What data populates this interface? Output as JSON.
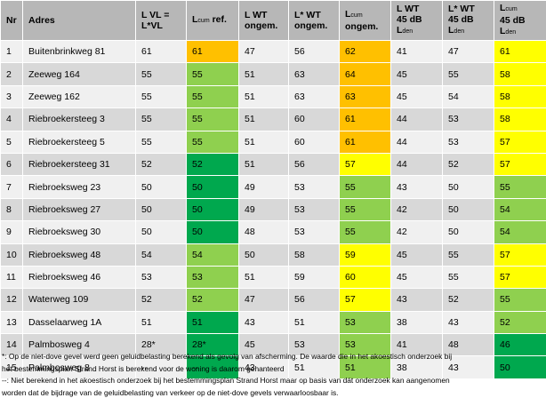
{
  "colors": {
    "header_bg": "#b7b7b7",
    "row_light": "#f0f0f0",
    "row_dark": "#d8d8d8",
    "dark_green": "#00a84e",
    "light_green": "#8fd04f",
    "yellow": "#ffff00",
    "orange": "#ffc000"
  },
  "header": {
    "nr": "Nr",
    "adres": "Adres",
    "lvl_line1": "L VL =",
    "lvl_line2": "L*VL",
    "lcum_ref_main": "L",
    "lcum_ref_sub": "cum",
    "lcum_ref_rest": " ref.",
    "lwt_line1": "L WT",
    "lwt_line2": "ongem.",
    "lswt_line1": "L* WT",
    "lswt_line2": "ongem.",
    "lcum_ong_main": "L",
    "lcum_ong_sub": "cum",
    "lcum_ong_line2": "ongem.",
    "lwt45_line1": "L WT",
    "lwt45_line2": "45 dB",
    "lwt45_line3_main": "L",
    "lwt45_line3_sub": "den",
    "lswt45_line1": "L* WT",
    "lswt45_line2": "45 dB",
    "lswt45_line3_main": "L",
    "lswt45_line3_sub": "den",
    "lcum45_line1_main": "L",
    "lcum45_line1_sub": "cum",
    "lcum45_line2": "45 dB",
    "lcum45_line3_main": "L",
    "lcum45_line3_sub": "den"
  },
  "rows": [
    {
      "nr": "1",
      "adres": "Buitenbrinkweg 81",
      "lvl": "61",
      "lcum_ref": "61",
      "lwt": "47",
      "lswt": "56",
      "lcum_ong": "62",
      "lwt45": "41",
      "lswt45": "47",
      "lcum45": "61",
      "c_ref": "orange",
      "c_ong": "orange",
      "c_45": "yellow"
    },
    {
      "nr": "2",
      "adres": "Zeeweg 164",
      "lvl": "55",
      "lcum_ref": "55",
      "lwt": "51",
      "lswt": "63",
      "lcum_ong": "64",
      "lwt45": "45",
      "lswt45": "55",
      "lcum45": "58",
      "c_ref": "light_green",
      "c_ong": "orange",
      "c_45": "yellow"
    },
    {
      "nr": "3",
      "adres": "Zeeweg 162",
      "lvl": "55",
      "lcum_ref": "55",
      "lwt": "51",
      "lswt": "63",
      "lcum_ong": "63",
      "lwt45": "45",
      "lswt45": "54",
      "lcum45": "58",
      "c_ref": "light_green",
      "c_ong": "orange",
      "c_45": "yellow"
    },
    {
      "nr": "4",
      "adres": "Riebroekersteeg 3",
      "lvl": "55",
      "lcum_ref": "55",
      "lwt": "51",
      "lswt": "60",
      "lcum_ong": "61",
      "lwt45": "44",
      "lswt45": "53",
      "lcum45": "58",
      "c_ref": "light_green",
      "c_ong": "orange",
      "c_45": "yellow"
    },
    {
      "nr": "5",
      "adres": "Riebroekersteeg 5",
      "lvl": "55",
      "lcum_ref": "55",
      "lwt": "51",
      "lswt": "60",
      "lcum_ong": "61",
      "lwt45": "44",
      "lswt45": "53",
      "lcum45": "57",
      "c_ref": "light_green",
      "c_ong": "orange",
      "c_45": "yellow"
    },
    {
      "nr": "6",
      "adres": "Riebroekersteeg 31",
      "lvl": "52",
      "lcum_ref": "52",
      "lwt": "51",
      "lswt": "56",
      "lcum_ong": "57",
      "lwt45": "44",
      "lswt45": "52",
      "lcum45": "57",
      "c_ref": "dark_green",
      "c_ong": "yellow",
      "c_45": "yellow"
    },
    {
      "nr": "7",
      "adres": "Riebroeksweg 23",
      "lvl": "50",
      "lcum_ref": "50",
      "lwt": "49",
      "lswt": "53",
      "lcum_ong": "55",
      "lwt45": "43",
      "lswt45": "50",
      "lcum45": "55",
      "c_ref": "dark_green",
      "c_ong": "light_green",
      "c_45": "light_green"
    },
    {
      "nr": "8",
      "adres": "Riebroeksweg 27",
      "lvl": "50",
      "lcum_ref": "50",
      "lwt": "49",
      "lswt": "53",
      "lcum_ong": "55",
      "lwt45": "42",
      "lswt45": "50",
      "lcum45": "54",
      "c_ref": "dark_green",
      "c_ong": "light_green",
      "c_45": "light_green"
    },
    {
      "nr": "9",
      "adres": "Riebroeksweg 30",
      "lvl": "50",
      "lcum_ref": "50",
      "lwt": "48",
      "lswt": "53",
      "lcum_ong": "55",
      "lwt45": "42",
      "lswt45": "50",
      "lcum45": "54",
      "c_ref": "dark_green",
      "c_ong": "light_green",
      "c_45": "light_green"
    },
    {
      "nr": "10",
      "adres": "Riebroeksweg 48",
      "lvl": "54",
      "lcum_ref": "54",
      "lwt": "50",
      "lswt": "58",
      "lcum_ong": "59",
      "lwt45": "45",
      "lswt45": "55",
      "lcum45": "57",
      "c_ref": "light_green",
      "c_ong": "yellow",
      "c_45": "yellow"
    },
    {
      "nr": "11",
      "adres": "Riebroeksweg 46",
      "lvl": "53",
      "lcum_ref": "53",
      "lwt": "51",
      "lswt": "59",
      "lcum_ong": "60",
      "lwt45": "45",
      "lswt45": "55",
      "lcum45": "57",
      "c_ref": "light_green",
      "c_ong": "yellow",
      "c_45": "yellow"
    },
    {
      "nr": "12",
      "adres": "Waterweg 109",
      "lvl": "52",
      "lcum_ref": "52",
      "lwt": "47",
      "lswt": "56",
      "lcum_ong": "57",
      "lwt45": "43",
      "lswt45": "52",
      "lcum45": "55",
      "c_ref": "light_green",
      "c_ong": "yellow",
      "c_45": "light_green"
    },
    {
      "nr": "13",
      "adres": "Dasselaarweg 1A",
      "lvl": "51",
      "lcum_ref": "51",
      "lwt": "43",
      "lswt": "51",
      "lcum_ong": "53",
      "lwt45": "38",
      "lswt45": "43",
      "lcum45": "52",
      "c_ref": "dark_green",
      "c_ong": "light_green",
      "c_45": "light_green"
    },
    {
      "nr": "14",
      "adres": "Palmbosweg 4",
      "lvl": "28*",
      "lcum_ref": "28*",
      "lwt": "45",
      "lswt": "53",
      "lcum_ong": "53",
      "lwt45": "41",
      "lswt45": "48",
      "lcum45": "46",
      "c_ref": "dark_green",
      "c_ong": "light_green",
      "c_45": "dark_green"
    },
    {
      "nr": "15",
      "adres": "Palmbosweg 8",
      "lvl": "--",
      "lcum_ref": "--",
      "lwt": "43",
      "lswt": "51",
      "lcum_ong": "51",
      "lwt45": "38",
      "lswt45": "43",
      "lcum45": "50",
      "c_ref": "dark_green",
      "c_ong": "light_green",
      "c_45": "dark_green"
    }
  ],
  "notes": {
    "line1": "*: Op de niet-dove gevel werd geen geluidbelasting berekend als gevolg van afscherming. De waarde die in het akoestisch onderzoek bij",
    "line2": "het bestemmingsplan Strand Horst is berekend voor de woning is daarom gehanteerd",
    "line3": "--: Niet berekend in het akoestisch onderzoek bij het bestemmingsplan Strand Horst maar op basis van dát onderzoek kan aangenomen",
    "line4": "worden dat de bijdrage van de geluidbelasting van verkeer op de niet-dove gevels verwaarloosbaar is."
  }
}
